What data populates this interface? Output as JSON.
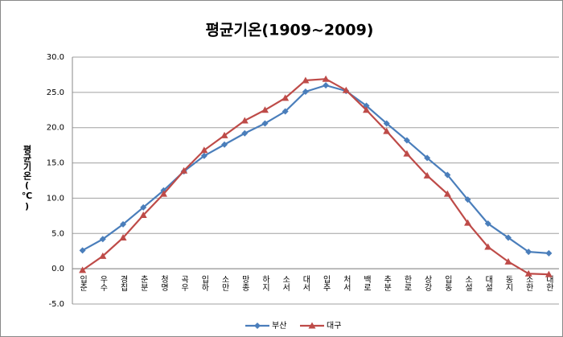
{
  "chart_data": {
    "type": "line",
    "title": "평균기온(1909~2009)",
    "y_label": "평균기온(℃)",
    "categories": [
      "입춘",
      "우수",
      "경칩",
      "춘분",
      "청명",
      "곡우",
      "입하",
      "소만",
      "망종",
      "하지",
      "소서",
      "대서",
      "입추",
      "처서",
      "백로",
      "추분",
      "한로",
      "상강",
      "입동",
      "소설",
      "대설",
      "동지",
      "소한",
      "대한"
    ],
    "series": [
      {
        "name": "부산",
        "color": "#4a7ebb",
        "marker": "diamond",
        "values": [
          2.6,
          4.2,
          6.3,
          8.7,
          11.1,
          13.8,
          16.0,
          17.6,
          19.2,
          20.6,
          22.3,
          25.1,
          26.0,
          25.2,
          23.1,
          20.6,
          18.2,
          15.7,
          13.3,
          9.8,
          6.4,
          4.4,
          2.4,
          2.2
        ]
      },
      {
        "name": "대구",
        "color": "#be4b48",
        "marker": "triangle",
        "values": [
          -0.2,
          1.8,
          4.4,
          7.6,
          10.6,
          13.9,
          16.8,
          18.9,
          21.0,
          22.5,
          24.2,
          26.7,
          26.9,
          25.3,
          22.5,
          19.5,
          16.3,
          13.2,
          10.6,
          6.5,
          3.1,
          1.0,
          -0.7,
          -0.8
        ]
      }
    ],
    "ylim": [
      -5,
      30
    ],
    "yticks": [
      {
        "value": -5,
        "label": "-5.0"
      },
      {
        "value": 0,
        "label": "0.0"
      },
      {
        "value": 5,
        "label": "5.0"
      },
      {
        "value": 10,
        "label": "10.0"
      },
      {
        "value": 15,
        "label": "15.0"
      },
      {
        "value": 20,
        "label": "20.0"
      },
      {
        "value": 25,
        "label": "25.0"
      },
      {
        "value": 30,
        "label": "30.0"
      }
    ],
    "grid": true,
    "legend": "bottom"
  }
}
